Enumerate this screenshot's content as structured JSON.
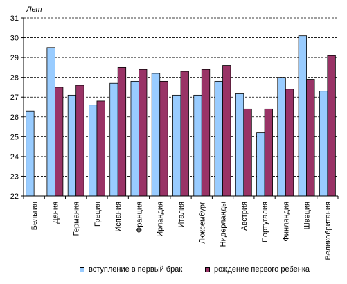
{
  "chart_data": {
    "type": "bar",
    "ylabel": "Лет",
    "ylim": [
      22,
      31
    ],
    "yticks": [
      22,
      23,
      24,
      25,
      26,
      27,
      28,
      29,
      30,
      31
    ],
    "grid": true,
    "legend_position": "bottom",
    "categories": [
      "Бельгия",
      "Дания",
      "Германия",
      "Греция",
      "Испания",
      "Франция",
      "Ирландия",
      "Италия",
      "Люксембург",
      "Нидерланды",
      "Австрия",
      "Португалия",
      "Финляндия",
      "Швеция",
      "Великобритания"
    ],
    "series": [
      {
        "name": "вступление в первый брак",
        "color": "#99ccff",
        "values": [
          26.3,
          29.5,
          27.1,
          26.6,
          27.7,
          27.8,
          28.2,
          27.1,
          27.1,
          27.8,
          27.2,
          25.2,
          28.0,
          30.1,
          27.3
        ]
      },
      {
        "name": "рождение первого ребенка",
        "color": "#993366",
        "values": [
          null,
          27.5,
          27.6,
          26.8,
          28.5,
          28.4,
          27.8,
          28.3,
          28.4,
          28.6,
          26.4,
          26.4,
          27.4,
          27.9,
          29.1
        ]
      }
    ]
  }
}
